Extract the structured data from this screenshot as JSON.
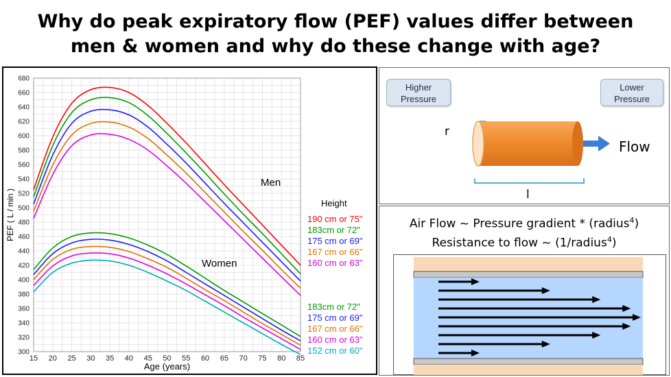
{
  "title": {
    "line1": "Why do peak expiratory flow (PEF) values differ between",
    "line2": "men & women and why do these change with age?"
  },
  "chart_data": {
    "type": "line",
    "xlabel": "Age (years)",
    "ylabel": "PEF ( L / min )",
    "xlim": [
      15,
      85
    ],
    "ylim": [
      300,
      680
    ],
    "xticks": [
      15,
      20,
      25,
      30,
      35,
      40,
      45,
      50,
      55,
      60,
      65,
      70,
      75,
      80,
      85
    ],
    "yticks": [
      300,
      320,
      340,
      360,
      380,
      400,
      420,
      440,
      460,
      480,
      500,
      520,
      540,
      560,
      580,
      600,
      620,
      640,
      660,
      680
    ],
    "grid": true,
    "annotations": {
      "men": "Men",
      "women": "Women",
      "height_header": "Height"
    },
    "groups": [
      {
        "label": "Men",
        "x": [
          15,
          20,
          25,
          30,
          35,
          40,
          45,
          50,
          55,
          60,
          65,
          70,
          75,
          80,
          85
        ],
        "series": [
          {
            "name": "190 cm or 75\"",
            "color": "#ff0000",
            "values": [
              525,
              598,
              645,
              664,
              667,
              660,
              642,
              617,
              590,
              561,
              532,
              504,
              476,
              448,
              420
            ]
          },
          {
            "name": "183cm or 72\"",
            "color": "#009a00",
            "values": [
              515,
              586,
              632,
              650,
              653,
              646,
              628,
              603,
              576,
              548,
              519,
              491,
              464,
              436,
              408
            ]
          },
          {
            "name": "175 cm or 69\"",
            "color": "#1a1aff",
            "values": [
              505,
              573,
              617,
              634,
              636,
              629,
              612,
              588,
              562,
              534,
              506,
              479,
              452,
              425,
              398
            ]
          },
          {
            "name": "167 cm or 66\"",
            "color": "#e07000",
            "values": [
              495,
              559,
              601,
              617,
              619,
              612,
              596,
              573,
              548,
              521,
              494,
              467,
              441,
              414,
              388
            ]
          },
          {
            "name": "160 cm or 63\"",
            "color": "#e000e0",
            "values": [
              485,
              546,
              586,
              601,
              602,
              595,
              580,
              558,
              534,
              508,
              482,
              456,
              430,
              404,
              378
            ]
          }
        ]
      },
      {
        "label": "Women",
        "x": [
          15,
          20,
          25,
          30,
          35,
          40,
          45,
          50,
          55,
          60,
          65,
          70,
          75,
          80,
          85
        ],
        "series": [
          {
            "name": "183cm or 72\"",
            "color": "#009a00",
            "values": [
              414,
              444,
              460,
              465,
              464,
              458,
              448,
              435,
              419,
              402,
              385,
              369,
              353,
              337,
              321
            ]
          },
          {
            "name": "175 cm or 69\"",
            "color": "#1a1aff",
            "values": [
              407,
              436,
              451,
              456,
              455,
              449,
              439,
              426,
              410,
              394,
              378,
              362,
              346,
              330,
              315
            ]
          },
          {
            "name": "167 cm or 66\"",
            "color": "#e07000",
            "values": [
              400,
              428,
              442,
              446,
              445,
              439,
              429,
              417,
              402,
              386,
              371,
              355,
              339,
              324,
              309
            ]
          },
          {
            "name": "160 cm or 63\"",
            "color": "#e000e0",
            "values": [
              392,
              419,
              433,
              437,
              436,
              430,
              420,
              408,
              394,
              379,
              364,
              348,
              333,
              318,
              303
            ]
          },
          {
            "name": "152 cm or 60\"",
            "color": "#00a8b8",
            "values": [
              383,
              410,
              423,
              427,
              426,
              420,
              410,
              398,
              385,
              370,
              355,
              340,
              325,
              310,
              296
            ]
          }
        ]
      }
    ]
  },
  "pipe_diagram": {
    "higher_pressure": "Higher Pressure",
    "lower_pressure": "Lower Pressure",
    "radius_label": "r",
    "length_label": "l",
    "flow_label": "Flow",
    "colors": {
      "tube": "#f0882a",
      "arrow": "#3a7fd5",
      "box": "#dbe5f1"
    }
  },
  "flow_equations": {
    "line1_prefix": "Air Flow ~ Pressure gradient * (radius",
    "line1_exp": "4",
    "line1_suffix": ")",
    "line2_prefix": "Resistance to flow ~ (1/radius",
    "line2_exp": "4",
    "line2_suffix": ")",
    "flow_arrow_count": 9,
    "colors": {
      "wall": "#f9d9b5",
      "lumen": "#b5d6ff",
      "lining": "#c8c8c8",
      "arrow": "#000000"
    }
  }
}
